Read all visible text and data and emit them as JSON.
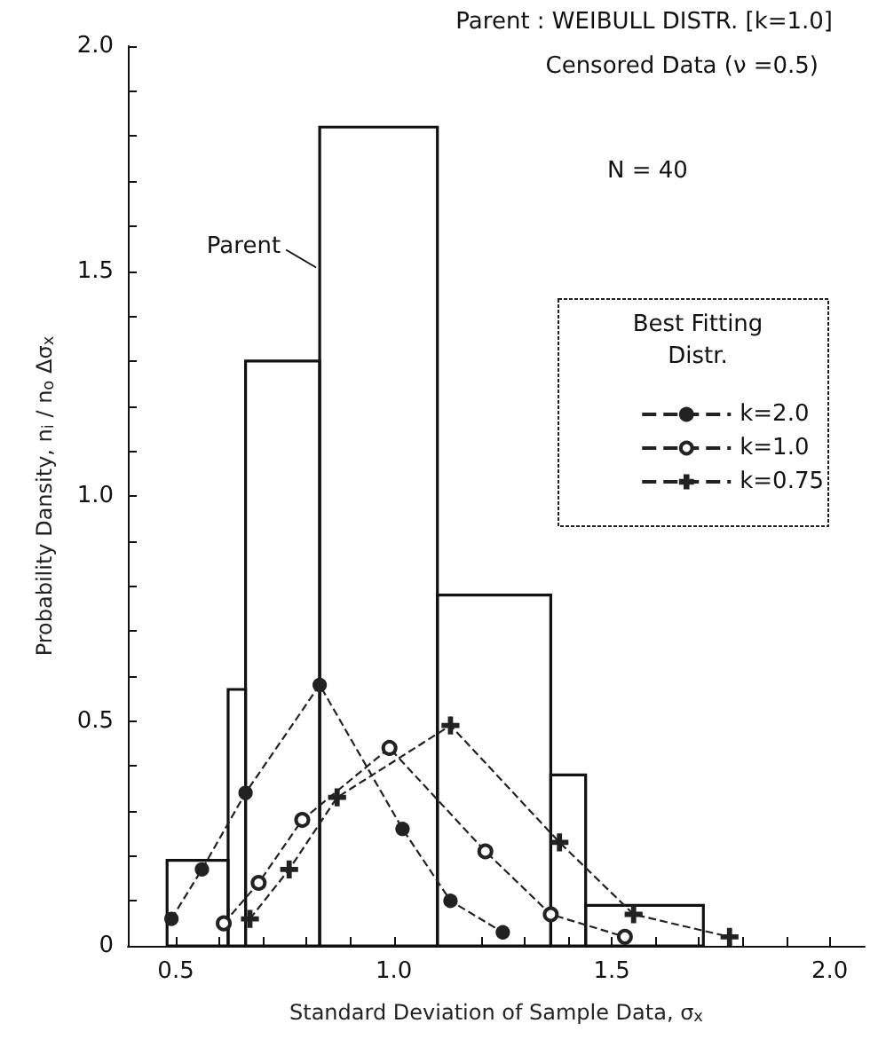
{
  "chart_data": {
    "type": "line",
    "title": "Parent : WEIBULL DISTR. [k=1.0]",
    "subtitle": "Censored Data (ν =0.5)",
    "xlabel": "Standard Deviation of Sample Data, σ$_{x}$",
    "ylabel": "Probability Dansity, n$_{i}$ / n$_{o}$ Δσ$_{x}$",
    "legend_title": "Best Fitting Distr.",
    "legend": "right",
    "grid": false,
    "line_style": "dashed",
    "annotations": [
      "N = 40",
      {
        "text": "Parent",
        "x": 0.83,
        "y": 1.5
      }
    ],
    "xlim": [
      0.39,
      2.08
    ],
    "xticks": [
      {
        "value": 0.5,
        "label": "0.5"
      },
      {
        "value": 0.6,
        "label": null
      },
      {
        "value": 0.7,
        "label": null
      },
      {
        "value": 0.8,
        "label": null
      },
      {
        "value": 0.9,
        "label": null
      },
      {
        "value": 1.0,
        "label": "1.0"
      },
      {
        "value": 1.1,
        "label": null
      },
      {
        "value": 1.2,
        "label": null
      },
      {
        "value": 1.3,
        "label": null
      },
      {
        "value": 1.4,
        "label": null
      },
      {
        "value": 1.5,
        "label": "1.5"
      },
      {
        "value": 1.6,
        "label": null
      },
      {
        "value": 1.7,
        "label": null
      },
      {
        "value": 1.8,
        "label": null
      },
      {
        "value": 1.9,
        "label": null
      },
      {
        "value": 2.0,
        "label": "2.0"
      }
    ],
    "ylim": [
      0,
      2.0
    ],
    "yticks": [
      0,
      {
        "value": 0.1,
        "label": null
      },
      {
        "value": 0.2,
        "label": null
      },
      {
        "value": 0.3,
        "label": null
      },
      {
        "value": 0.4,
        "label": null
      },
      0.5,
      {
        "value": 0.6,
        "label": null
      },
      {
        "value": 0.7,
        "label": null
      },
      {
        "value": 0.8,
        "label": null
      },
      {
        "value": 0.9,
        "label": null
      },
      {
        "value": 1.0,
        "label": "1.0"
      },
      {
        "value": 1.1,
        "label": null
      },
      {
        "value": 1.2,
        "label": null
      },
      {
        "value": 1.3,
        "label": null
      },
      {
        "value": 1.4,
        "label": null
      },
      1.5,
      {
        "value": 1.6,
        "label": null
      },
      {
        "value": 1.7,
        "label": null
      },
      {
        "value": 1.8,
        "label": null
      },
      {
        "value": 1.9,
        "label": null
      },
      {
        "value": 2.0,
        "label": "2.0"
      }
    ],
    "series": [
      {
        "type": "histogram",
        "color": "#111111",
        "bins": [
          0.48,
          0.62,
          0.66,
          0.83,
          1.1,
          1.36,
          1.44,
          1.71
        ],
        "values": [
          0.19,
          0.57,
          1.3,
          1.82,
          0.78,
          0.38,
          0.09
        ]
      },
      {
        "name": "k=2.0",
        "color": "#222222",
        "marker": "circle",
        "x": [
          0.49,
          0.56,
          0.66,
          0.83,
          1.02,
          1.13,
          1.25
        ],
        "values": [
          0.06,
          0.17,
          0.34,
          0.58,
          0.26,
          0.1,
          0.03
        ]
      },
      {
        "name": "k=1.0",
        "color": "#222222",
        "marker": "circle",
        "x": [
          0.61,
          0.69,
          0.79,
          0.99,
          1.21,
          1.36,
          1.53
        ],
        "values": [
          0.05,
          0.14,
          0.28,
          0.44,
          0.21,
          0.07,
          0.02
        ]
      },
      {
        "name": "k=0.75",
        "color": "#222222",
        "marker": "cross",
        "x": [
          0.67,
          0.76,
          0.87,
          1.13,
          1.38,
          1.55,
          1.77
        ],
        "values": [
          0.06,
          0.17,
          0.33,
          0.49,
          0.23,
          0.07,
          0.02
        ]
      }
    ]
  }
}
